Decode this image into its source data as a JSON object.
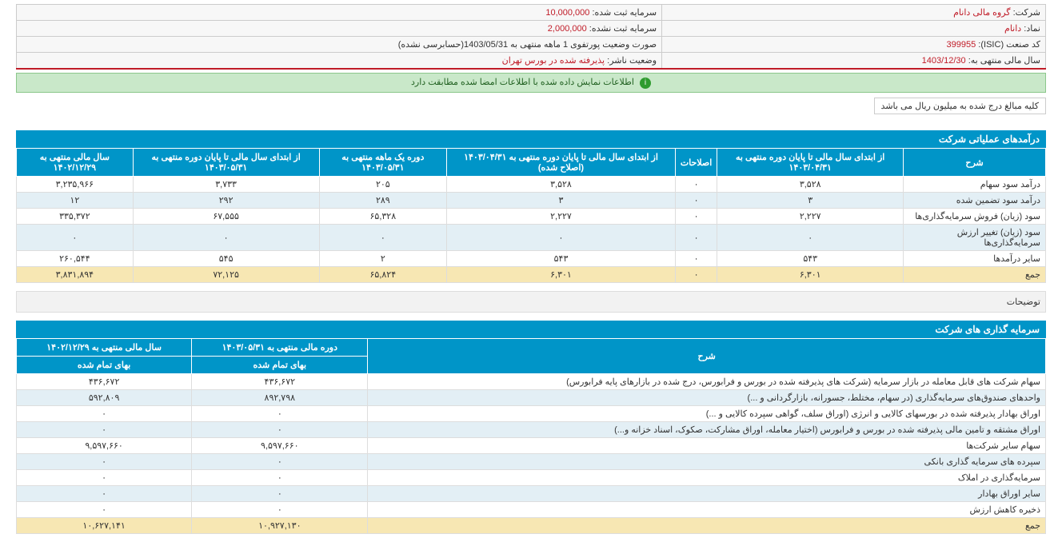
{
  "info": {
    "company_label": "شرکت:",
    "company_value": "گروه مالی دانام",
    "capital_reg_label": "سرمایه ثبت شده:",
    "capital_reg_value": "10,000,000",
    "symbol_label": "نماد:",
    "symbol_value": "دانام",
    "capital_unreg_label": "سرمایه ثبت نشده:",
    "capital_unreg_value": "2,000,000",
    "isic_label": "کد صنعت (ISIC):",
    "isic_value": "399955",
    "report_type": "صورت وضعیت پورتفوی 1 ماهه منتهی به 1403/05/31(حسابرسی نشده)",
    "fiscal_year_label": "سال مالی منتهی به:",
    "fiscal_year_value": "1403/12/30",
    "publisher_label": "وضعیت ناشر:",
    "publisher_value": "پذيرفته شده در بورس تهران"
  },
  "status": "اطلاعات نمایش داده شده با اطلاعات امضا شده مطابقت دارد",
  "note": "کلیه مبالغ درج شده به میلیون ریال می باشد",
  "table1": {
    "title": "درآمدهای عملیاتی شرکت",
    "headers": [
      "شرح",
      "از ابتدای سال مالی تا پایان دوره منتهی به ۱۴۰۳/۰۴/۳۱",
      "اصلاحات",
      "از ابتدای سال مالی تا پایان دوره منتهی به ۱۴۰۳/۰۴/۳۱ (اصلاح شده)",
      "دوره یک ماهه منتهی به ۱۴۰۳/۰۵/۳۱",
      "از ابتدای سال مالی تا پایان دوره منتهی به ۱۴۰۳/۰۵/۳۱",
      "سال مالی منتهی به ۱۴۰۲/۱۲/۲۹"
    ],
    "rows": [
      {
        "c": "odd",
        "d": [
          "درآمد سود سهام",
          "۳,۵۲۸",
          "۰",
          "۳,۵۲۸",
          "۲۰۵",
          "۳,۷۳۳",
          "۳,۲۳۵,۹۶۶"
        ]
      },
      {
        "c": "even",
        "d": [
          "درآمد سود تضمین شده",
          "۳",
          "۰",
          "۳",
          "۲۸۹",
          "۲۹۲",
          "۱۲"
        ]
      },
      {
        "c": "odd",
        "d": [
          "سود (زیان) فروش سرمایه‌گذاری‌ها",
          "۲,۲۲۷",
          "۰",
          "۲,۲۲۷",
          "۶۵,۳۲۸",
          "۶۷,۵۵۵",
          "۳۳۵,۳۷۲"
        ]
      },
      {
        "c": "even",
        "d": [
          "سود (زیان) تغییر ارزش سرمایه‌گذاری‌ها",
          "۰",
          "۰",
          "۰",
          "۰",
          "۰",
          "۰"
        ]
      },
      {
        "c": "odd",
        "d": [
          "سایر درآمدها",
          "۵۴۳",
          "۰",
          "۵۴۳",
          "۲",
          "۵۴۵",
          "۲۶۰,۵۴۴"
        ]
      },
      {
        "c": "sum",
        "d": [
          "جمع",
          "۶,۳۰۱",
          "۰",
          "۶,۳۰۱",
          "۶۵,۸۲۴",
          "۷۲,۱۲۵",
          "۳,۸۳۱,۸۹۴"
        ]
      }
    ]
  },
  "explain_label": "توضیحات",
  "table2": {
    "title": "سرمایه گذاری های شرکت",
    "header_main": "شرح",
    "header_col1": "دوره مالی منتهی به ۱۴۰۳/۰۵/۳۱",
    "header_col2": "سال مالی منتهی به ۱۴۰۲/۱۲/۲۹",
    "sub_header": "بهای تمام شده",
    "rows": [
      {
        "c": "odd",
        "d": [
          "سهام شرکت های قابل معامله در بازار سرمایه (شرکت های پذیرفته شده در بورس و فرابورس، درج شده در بازارهای پایه فرابورس)",
          "۴۳۶,۶۷۲",
          "۴۳۶,۶۷۲"
        ]
      },
      {
        "c": "even",
        "d": [
          "واحدهای صندوق‌های سرمایه‌گذاری (در سهام، مختلط، جسورانه، بازارگردانی و ...)",
          "۸۹۲,۷۹۸",
          "۵۹۲,۸۰۹"
        ]
      },
      {
        "c": "odd",
        "d": [
          "اوراق بهادار پذیرفته شده در بورسهای کالایی و انرژی (اوراق سلف، گواهی سپرده کالایی و ...)",
          "۰",
          "۰"
        ]
      },
      {
        "c": "even",
        "d": [
          "اوراق مشتقه و تامین مالی پذیرفته شده در بورس و فرابورس (اختیار معامله، اوراق مشارکت، صکوک، اسناد خزانه و...)",
          "۰",
          "۰"
        ]
      },
      {
        "c": "odd",
        "d": [
          "سهام سایر شرکت‌ها",
          "۹,۵۹۷,۶۶۰",
          "۹,۵۹۷,۶۶۰"
        ]
      },
      {
        "c": "even",
        "d": [
          "سپرده های سرمایه گذاری بانکی",
          "۰",
          "۰"
        ]
      },
      {
        "c": "odd",
        "d": [
          "سرمایه‌گذاری در املاک",
          "۰",
          "۰"
        ]
      },
      {
        "c": "even",
        "d": [
          "سایر اوراق بهادار",
          "۰",
          "۰"
        ]
      },
      {
        "c": "odd",
        "d": [
          "ذخیره کاهش ارزش",
          "۰",
          "۰"
        ]
      },
      {
        "c": "sum",
        "d": [
          "جمع",
          "۱۰,۹۲۷,۱۳۰",
          "۱۰,۶۲۷,۱۴۱"
        ]
      }
    ]
  }
}
